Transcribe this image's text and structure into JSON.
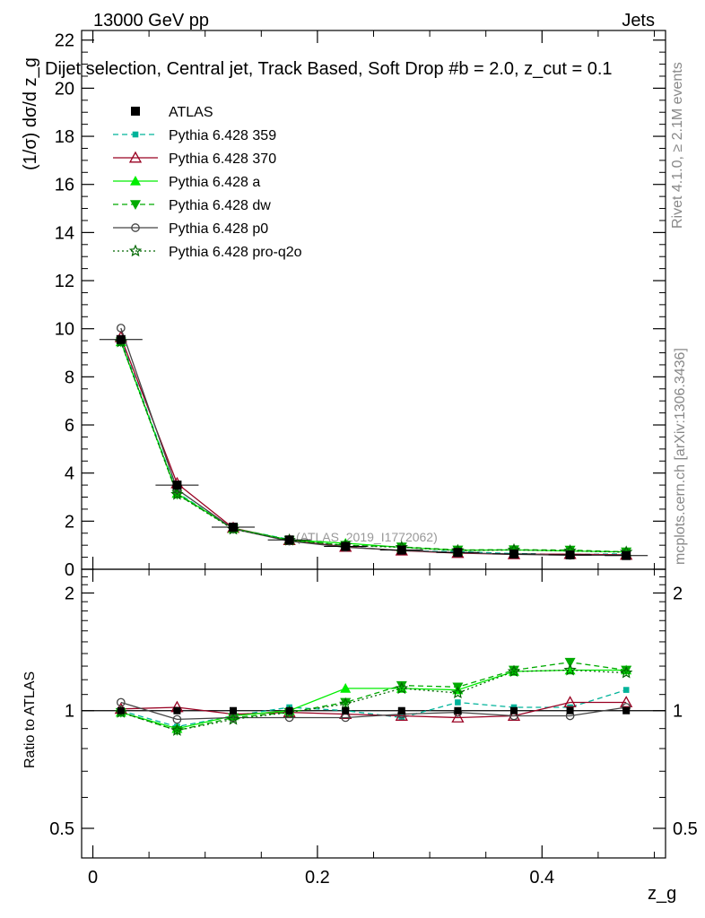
{
  "header": {
    "energy": "13000 GeV pp",
    "category": "Jets",
    "title": "Dijet selection, Central jet, Track Based, Soft Drop #b = 2.0, z_cut = 0.1"
  },
  "side": {
    "rivet": "Rivet 4.1.0, ≥ 2.1M events",
    "mcplots": "mcplots.cern.ch [arXiv:1306.3436]"
  },
  "watermark": "(ATLAS_2019_I1772062)",
  "chart_data": {
    "type": "line",
    "x": [
      0.025,
      0.075,
      0.125,
      0.175,
      0.225,
      0.275,
      0.325,
      0.375,
      0.425,
      0.475
    ],
    "xlabel": "z_g",
    "ylabel": "(1/σ) dσ/d z_g",
    "ratio_ylabel": "Ratio to ATLAS",
    "xlim": [
      -0.01,
      0.51
    ],
    "ylim": [
      0,
      22.4
    ],
    "ratio_ylim": [
      0.42,
      2.3
    ],
    "xticks": [
      0,
      0.2,
      0.4
    ],
    "xtick_labels": [
      "0",
      "0.2",
      "0.4"
    ],
    "yticks": [
      0,
      2,
      4,
      6,
      8,
      10,
      12,
      14,
      16,
      18,
      20,
      22
    ],
    "ytick_labels": [
      "0",
      "2",
      "4",
      "6",
      "8",
      "10",
      "12",
      "14",
      "16",
      "18",
      "20",
      "22"
    ],
    "ratio_yticks": [
      0.5,
      1,
      2
    ],
    "ratio_ytick_labels": [
      "0.5",
      "1",
      "2"
    ],
    "data": {
      "name": "ATLAS",
      "values": [
        9.55,
        3.5,
        1.75,
        1.22,
        0.95,
        0.8,
        0.7,
        0.64,
        0.6,
        0.57
      ]
    },
    "series": [
      {
        "name": "Pythia 6.428 359",
        "color": "#00b39a",
        "dash": "6,4",
        "marker": "square-small",
        "ratio": [
          1.0,
          0.91,
          0.97,
          1.02,
          1.0,
          0.96,
          1.05,
          1.02,
          1.02,
          1.13
        ]
      },
      {
        "name": "Pythia 6.428 370",
        "color": "#990022",
        "dash": "",
        "marker": "triangle-open",
        "ratio": [
          1.01,
          1.02,
          0.98,
          0.99,
          0.98,
          0.97,
          0.96,
          0.97,
          1.05,
          1.05
        ]
      },
      {
        "name": "Pythia 6.428 a",
        "color": "#00ee00",
        "dash": "",
        "marker": "triangle",
        "ratio": [
          0.99,
          0.9,
          0.97,
          1.0,
          1.14,
          1.14,
          1.13,
          1.26,
          1.27,
          1.27
        ]
      },
      {
        "name": "Pythia 6.428 dw",
        "color": "#00aa00",
        "dash": "6,4",
        "marker": "triangle-down",
        "ratio": [
          0.99,
          0.89,
          0.96,
          0.99,
          1.05,
          1.16,
          1.15,
          1.27,
          1.33,
          1.27
        ]
      },
      {
        "name": "Pythia 6.428 p0",
        "color": "#444444",
        "dash": "",
        "marker": "circle-open",
        "ratio": [
          1.05,
          0.95,
          0.96,
          0.96,
          0.96,
          0.98,
          0.99,
          0.97,
          0.97,
          1.02
        ]
      },
      {
        "name": "Pythia 6.428 pro-q2o",
        "color": "#006600",
        "dash": "2,3",
        "marker": "star",
        "ratio": [
          0.99,
          0.89,
          0.95,
          0.99,
          1.04,
          1.14,
          1.11,
          1.26,
          1.27,
          1.25
        ]
      }
    ]
  }
}
